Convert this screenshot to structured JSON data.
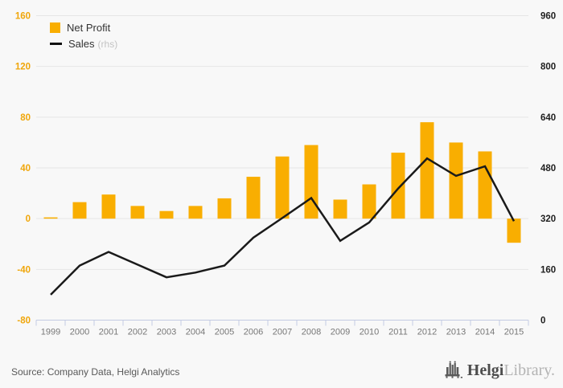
{
  "chart_data": {
    "type": "bar+line",
    "categories": [
      "1999",
      "2000",
      "2001",
      "2002",
      "2003",
      "2004",
      "2005",
      "2006",
      "2007",
      "2008",
      "2009",
      "2010",
      "2011",
      "2012",
      "2013",
      "2014",
      "2015"
    ],
    "series": [
      {
        "name": "Net Profit",
        "type": "bar",
        "axis": "left",
        "values": [
          1,
          13,
          19,
          10,
          6,
          10,
          16,
          33,
          49,
          58,
          15,
          27,
          52,
          76,
          60,
          53,
          -19
        ]
      },
      {
        "name": "Sales",
        "type": "line",
        "axis": "right",
        "values": [
          80,
          172,
          215,
          175,
          135,
          150,
          172,
          260,
          322,
          385,
          250,
          308,
          415,
          510,
          455,
          485,
          312
        ]
      }
    ],
    "title": "",
    "xlabel": "",
    "ylabel_left": "",
    "ylabel_right": "",
    "ylim_left": [
      -80,
      160
    ],
    "ylim_right": [
      0,
      960
    ],
    "yticks_left": [
      160,
      120,
      80,
      40,
      0,
      -40,
      -80
    ],
    "yticks_right": [
      960,
      800,
      640,
      480,
      320,
      160,
      0
    ],
    "grid": true,
    "legend_position": "top-left"
  },
  "legend": {
    "net_profit": "Net Profit",
    "sales": "Sales",
    "sales_suffix": "(rhs)"
  },
  "footer": {
    "source": "Source: Company Data, Helgi Analytics",
    "logo_helgi": "Helgi",
    "logo_library": "Library."
  },
  "colors": {
    "bar": "#f9ae01",
    "line": "#1a1a1a",
    "left_axis_labels": "#f0a60a",
    "right_axis_labels": "#1f1f1f",
    "x_axis_labels": "#777777",
    "grid": "#e6e6e6",
    "axis_line": "#c3cbe3",
    "background": "#f8f8f8"
  }
}
